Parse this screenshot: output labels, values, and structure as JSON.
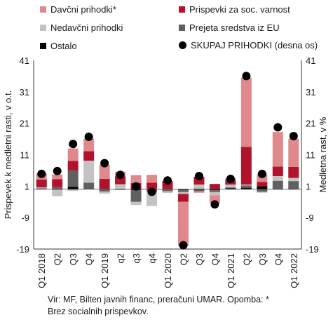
{
  "legend": [
    {
      "label": "Davčni prihodki*",
      "color": "#e0898c",
      "kind": "square"
    },
    {
      "label": "Prispevki za soc. varnost",
      "color": "#b0132b",
      "kind": "square"
    },
    {
      "label": "Nedavčni prihodki",
      "color": "#c3c3c3",
      "kind": "square"
    },
    {
      "label": "Prejeta sredstva iz EU",
      "color": "#606060",
      "kind": "square"
    },
    {
      "label": "Ostalo",
      "color": "#000000",
      "kind": "square"
    },
    {
      "label": "SKUPAJ PRIHODKI (desna os)",
      "color": "#000000",
      "kind": "dot"
    }
  ],
  "footnote": {
    "line1": "Vir: MF, Bilten javnih financ, preračuni UMAR. Opomba: *",
    "line2": "Brez socialnih prispevkov."
  },
  "chart_data": {
    "type": "bar",
    "stacked": true,
    "ylabel": "Prispevek k medletni rasti, v o.t.",
    "y2label": "Medletna rast, v %",
    "ylim": [
      -19,
      41
    ],
    "yticks": [
      -19,
      -9,
      1,
      11,
      21,
      31,
      41
    ],
    "categories": [
      "Q1 2018",
      "Q2",
      "Q3",
      "Q4",
      "Q1 2019",
      "q2",
      "q3",
      "q4",
      "Q1 2020",
      "Q2",
      "Q3",
      "Q4",
      "Q1 2021",
      "Q2",
      "Q3",
      "Q4",
      "Q1 2022"
    ],
    "series": [
      {
        "name": "Ostalo",
        "color": "#000000",
        "values": [
          0.1,
          0.2,
          0.8,
          0.1,
          0.1,
          0.1,
          -0.3,
          0.1,
          0.1,
          -0.3,
          0.2,
          -0.3,
          0.3,
          0.4,
          1.0,
          0.2,
          0.2
        ]
      },
      {
        "name": "Prejeta sredstva iz EU",
        "color": "#606060",
        "values": [
          0.2,
          0.5,
          5.2,
          2.0,
          -0.7,
          -0.2,
          -3.7,
          -0.8,
          -0.6,
          -0.6,
          -0.6,
          -0.6,
          0.3,
          0.8,
          -0.8,
          2.5,
          2.4
        ]
      },
      {
        "name": "Nedavčni prihodki",
        "color": "#c3c3c3",
        "values": [
          0.3,
          -2.2,
          -0.5,
          7.0,
          -0.7,
          1.5,
          -1.0,
          -4.5,
          -0.6,
          -0.6,
          1.3,
          -1.0,
          0.9,
          0.3,
          -0.3,
          1.5,
          1.0
        ]
      },
      {
        "name": "Prispevki za soc. varnost",
        "color": "#b0132b",
        "values": [
          2.5,
          2.5,
          3.0,
          3.0,
          3.2,
          2.5,
          2.0,
          2.0,
          2.5,
          -2.5,
          2.5,
          1.7,
          1.5,
          12.0,
          1.3,
          3.0,
          3.5
        ]
      },
      {
        "name": "Davčni prihodki*",
        "color": "#e0898c",
        "values": [
          2.0,
          1.5,
          4.0,
          4.0,
          4.5,
          1.5,
          2.5,
          2.5,
          0.0,
          -14.0,
          -0.5,
          -2.5,
          0.5,
          22.0,
          2.5,
          11.0,
          9.0
        ]
      }
    ],
    "total": {
      "name": "SKUPAJ PRIHODKI (desna os)",
      "values": [
        4.9,
        5.8,
        14.4,
        16.7,
        8.3,
        4.6,
        0.9,
        -0.8,
        2.8,
        -17.8,
        4.2,
        -4.8,
        3.3,
        36.0,
        4.9,
        19.7,
        16.9
      ]
    }
  }
}
